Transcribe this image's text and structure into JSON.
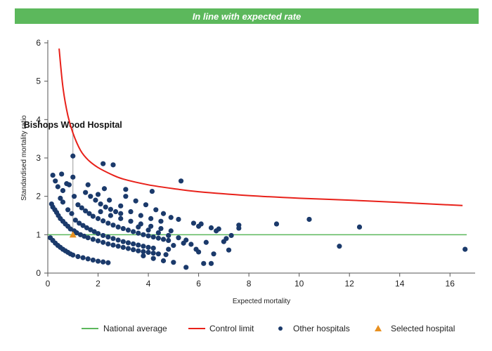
{
  "banner": {
    "text": "In line with expected rate"
  },
  "colors": {
    "banner_bg": "#5cb85c",
    "national_average": "#5cb85c",
    "control_limit": "#e8211a",
    "other_hospitals": "#1b3a6b",
    "selected_hospital": "#e89020",
    "axis": "#555555"
  },
  "chart_data": {
    "type": "scatter",
    "xlabel": "Expected mortality",
    "ylabel": "Standardised mortality ratio",
    "xlim": [
      0,
      17
    ],
    "ylim": [
      0,
      6
    ],
    "xticks": [
      0,
      2,
      4,
      6,
      8,
      10,
      12,
      14,
      16
    ],
    "yticks": [
      0,
      1,
      2,
      3,
      4,
      5,
      6
    ],
    "grid": false,
    "legend_placement": "bottom",
    "national_average": {
      "name": "National average",
      "y": 1
    },
    "control_limit": {
      "name": "Control limit",
      "x": [
        0.45,
        0.6,
        0.8,
        1.0,
        1.3,
        1.6,
        2.0,
        2.5,
        3.0,
        4.0,
        5.0,
        6.0,
        8.0,
        10.0,
        12.0,
        14.0,
        16.5
      ],
      "y": [
        5.85,
        4.85,
        4.1,
        3.65,
        3.2,
        2.95,
        2.75,
        2.58,
        2.45,
        2.3,
        2.2,
        2.12,
        2.02,
        1.95,
        1.9,
        1.84,
        1.76
      ]
    },
    "selected_hospital": {
      "name": "Selected hospital",
      "label": "Bishops Wood Hospital",
      "x": 1.0,
      "y": 1.0
    },
    "other_hospitals": {
      "name": "Other hospitals",
      "points": [
        [
          0.2,
          2.55
        ],
        [
          0.3,
          2.4
        ],
        [
          0.4,
          2.25
        ],
        [
          0.55,
          2.58
        ],
        [
          0.6,
          2.15
        ],
        [
          0.75,
          2.33
        ],
        [
          0.85,
          2.3
        ],
        [
          1.0,
          3.05
        ],
        [
          1.0,
          2.5
        ],
        [
          1.05,
          2.0
        ],
        [
          0.5,
          1.95
        ],
        [
          0.6,
          1.85
        ],
        [
          0.8,
          1.65
        ],
        [
          0.95,
          1.55
        ],
        [
          2.2,
          2.85
        ],
        [
          2.6,
          2.82
        ],
        [
          2.25,
          2.2
        ],
        [
          5.3,
          2.4
        ],
        [
          4.15,
          2.13
        ],
        [
          3.1,
          2.18
        ],
        [
          0.15,
          1.8
        ],
        [
          0.2,
          1.72
        ],
        [
          0.28,
          1.65
        ],
        [
          0.35,
          1.58
        ],
        [
          0.42,
          1.5
        ],
        [
          0.5,
          1.42
        ],
        [
          0.6,
          1.35
        ],
        [
          0.7,
          1.28
        ],
        [
          0.8,
          1.22
        ],
        [
          0.9,
          1.15
        ],
        [
          1.05,
          1.1
        ],
        [
          1.15,
          1.05
        ],
        [
          1.3,
          1.0
        ],
        [
          1.45,
          0.96
        ],
        [
          1.6,
          0.92
        ],
        [
          1.8,
          0.88
        ],
        [
          2.0,
          0.84
        ],
        [
          2.2,
          0.8
        ],
        [
          2.4,
          0.76
        ],
        [
          2.6,
          0.73
        ],
        [
          2.8,
          0.7
        ],
        [
          3.0,
          0.67
        ],
        [
          3.2,
          0.64
        ],
        [
          3.4,
          0.61
        ],
        [
          3.6,
          0.58
        ],
        [
          3.8,
          0.56
        ],
        [
          4.0,
          0.54
        ],
        [
          4.2,
          0.52
        ],
        [
          4.4,
          0.5
        ],
        [
          4.7,
          0.48
        ],
        [
          0.1,
          0.92
        ],
        [
          0.2,
          0.85
        ],
        [
          0.3,
          0.78
        ],
        [
          0.4,
          0.72
        ],
        [
          0.5,
          0.67
        ],
        [
          0.6,
          0.62
        ],
        [
          0.7,
          0.58
        ],
        [
          0.8,
          0.54
        ],
        [
          0.9,
          0.5
        ],
        [
          1.0,
          0.47
        ],
        [
          1.2,
          0.43
        ],
        [
          1.4,
          0.4
        ],
        [
          1.6,
          0.37
        ],
        [
          1.8,
          0.34
        ],
        [
          2.0,
          0.31
        ],
        [
          2.2,
          0.29
        ],
        [
          2.4,
          0.27
        ],
        [
          1.2,
          1.78
        ],
        [
          1.35,
          1.7
        ],
        [
          1.5,
          1.62
        ],
        [
          1.65,
          1.55
        ],
        [
          1.8,
          1.48
        ],
        [
          2.0,
          1.42
        ],
        [
          2.2,
          1.36
        ],
        [
          2.4,
          1.3
        ],
        [
          2.6,
          1.25
        ],
        [
          2.8,
          1.2
        ],
        [
          3.0,
          1.16
        ],
        [
          3.2,
          1.12
        ],
        [
          3.4,
          1.08
        ],
        [
          3.6,
          1.04
        ],
        [
          3.8,
          1.0
        ],
        [
          4.0,
          0.97
        ],
        [
          4.2,
          0.94
        ],
        [
          4.4,
          0.91
        ],
        [
          4.6,
          0.88
        ],
        [
          4.8,
          0.85
        ],
        [
          1.1,
          1.38
        ],
        [
          1.25,
          1.3
        ],
        [
          1.4,
          1.24
        ],
        [
          1.55,
          1.18
        ],
        [
          1.7,
          1.13
        ],
        [
          1.85,
          1.08
        ],
        [
          2.0,
          1.03
        ],
        [
          2.2,
          0.98
        ],
        [
          2.4,
          0.94
        ],
        [
          2.6,
          0.9
        ],
        [
          2.8,
          0.86
        ],
        [
          3.0,
          0.82
        ],
        [
          3.2,
          0.79
        ],
        [
          3.4,
          0.76
        ],
        [
          3.6,
          0.73
        ],
        [
          3.8,
          0.7
        ],
        [
          4.0,
          0.67
        ],
        [
          4.2,
          0.65
        ],
        [
          1.5,
          2.1
        ],
        [
          1.7,
          2.0
        ],
        [
          1.9,
          1.9
        ],
        [
          2.1,
          1.8
        ],
        [
          2.3,
          1.72
        ],
        [
          2.5,
          1.66
        ],
        [
          2.7,
          1.6
        ],
        [
          2.9,
          1.55
        ],
        [
          1.6,
          2.3
        ],
        [
          2.0,
          2.05
        ],
        [
          2.45,
          1.9
        ],
        [
          2.9,
          1.75
        ],
        [
          3.3,
          1.6
        ],
        [
          3.7,
          1.5
        ],
        [
          4.1,
          1.42
        ],
        [
          4.5,
          1.35
        ],
        [
          2.1,
          1.6
        ],
        [
          2.5,
          1.5
        ],
        [
          2.9,
          1.42
        ],
        [
          3.3,
          1.35
        ],
        [
          3.7,
          1.28
        ],
        [
          4.1,
          1.22
        ],
        [
          4.5,
          1.16
        ],
        [
          4.9,
          1.1
        ],
        [
          3.1,
          2.0
        ],
        [
          3.5,
          1.88
        ],
        [
          3.9,
          1.78
        ],
        [
          4.3,
          1.65
        ],
        [
          4.6,
          1.55
        ],
        [
          4.9,
          1.45
        ],
        [
          5.2,
          1.4
        ],
        [
          3.6,
          1.2
        ],
        [
          4.0,
          1.12
        ],
        [
          4.4,
          1.05
        ],
        [
          4.8,
          0.98
        ],
        [
          5.2,
          0.92
        ],
        [
          5.5,
          0.86
        ],
        [
          3.8,
          0.45
        ],
        [
          4.2,
          0.38
        ],
        [
          4.6,
          0.32
        ],
        [
          5.0,
          0.28
        ],
        [
          5.5,
          0.15
        ],
        [
          6.2,
          0.25
        ],
        [
          6.5,
          0.25
        ],
        [
          5.4,
          0.78
        ],
        [
          5.7,
          0.75
        ],
        [
          5.9,
          0.62
        ],
        [
          6.0,
          0.55
        ],
        [
          6.3,
          0.8
        ],
        [
          6.6,
          0.5
        ],
        [
          4.8,
          0.62
        ],
        [
          5.0,
          0.72
        ],
        [
          5.8,
          1.3
        ],
        [
          6.0,
          1.22
        ],
        [
          6.1,
          1.28
        ],
        [
          6.5,
          1.18
        ],
        [
          6.7,
          1.1
        ],
        [
          6.8,
          1.15
        ],
        [
          7.0,
          0.82
        ],
        [
          7.1,
          0.9
        ],
        [
          7.2,
          0.6
        ],
        [
          7.3,
          0.98
        ],
        [
          7.6,
          1.25
        ],
        [
          7.6,
          1.17
        ],
        [
          9.1,
          1.28
        ],
        [
          10.4,
          1.4
        ],
        [
          11.6,
          0.7
        ],
        [
          12.4,
          1.2
        ],
        [
          16.6,
          0.62
        ]
      ]
    },
    "legend": [
      {
        "key": "national_average",
        "label": "National average"
      },
      {
        "key": "control_limit",
        "label": "Control limit"
      },
      {
        "key": "other_hospitals",
        "label": "Other hospitals"
      },
      {
        "key": "selected_hospital",
        "label": "Selected hospital"
      }
    ]
  }
}
